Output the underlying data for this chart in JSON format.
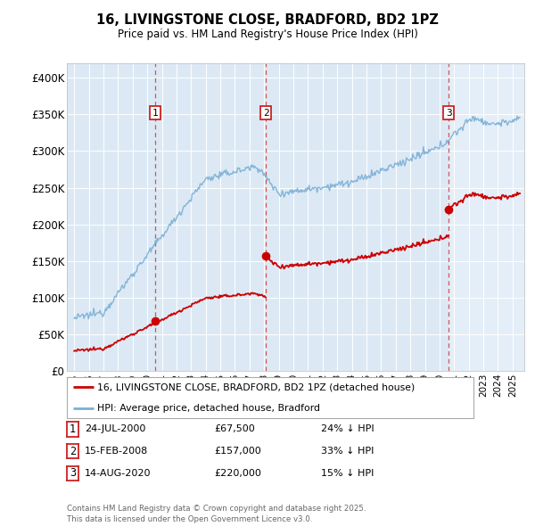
{
  "title": "16, LIVINGSTONE CLOSE, BRADFORD, BD2 1PZ",
  "subtitle": "Price paid vs. HM Land Registry's House Price Index (HPI)",
  "sales": [
    {
      "num": 1,
      "date_label": "24-JUL-2000",
      "date_x": 2000.56,
      "price": 67500,
      "hpi_pct": "24% ↓ HPI"
    },
    {
      "num": 2,
      "date_label": "15-FEB-2008",
      "date_x": 2008.12,
      "price": 157000,
      "hpi_pct": "33% ↓ HPI"
    },
    {
      "num": 3,
      "date_label": "14-AUG-2020",
      "date_x": 2020.62,
      "price": 220000,
      "hpi_pct": "15% ↓ HPI"
    }
  ],
  "hpi_color": "#7bafd4",
  "price_color": "#cc0000",
  "legend_label_price": "16, LIVINGSTONE CLOSE, BRADFORD, BD2 1PZ (detached house)",
  "legend_label_hpi": "HPI: Average price, detached house, Bradford",
  "footer": "Contains HM Land Registry data © Crown copyright and database right 2025.\nThis data is licensed under the Open Government Licence v3.0.",
  "ylim": [
    0,
    420000
  ],
  "xlim": [
    1994.5,
    2025.8
  ],
  "yticks": [
    0,
    50000,
    100000,
    150000,
    200000,
    250000,
    300000,
    350000,
    400000
  ],
  "ytick_labels": [
    "£0",
    "£50K",
    "£100K",
    "£150K",
    "£200K",
    "£250K",
    "£300K",
    "£350K",
    "£400K"
  ],
  "plot_bg_color": "#dce9f5",
  "plot_bg_color_recent": "#e8f0f8"
}
